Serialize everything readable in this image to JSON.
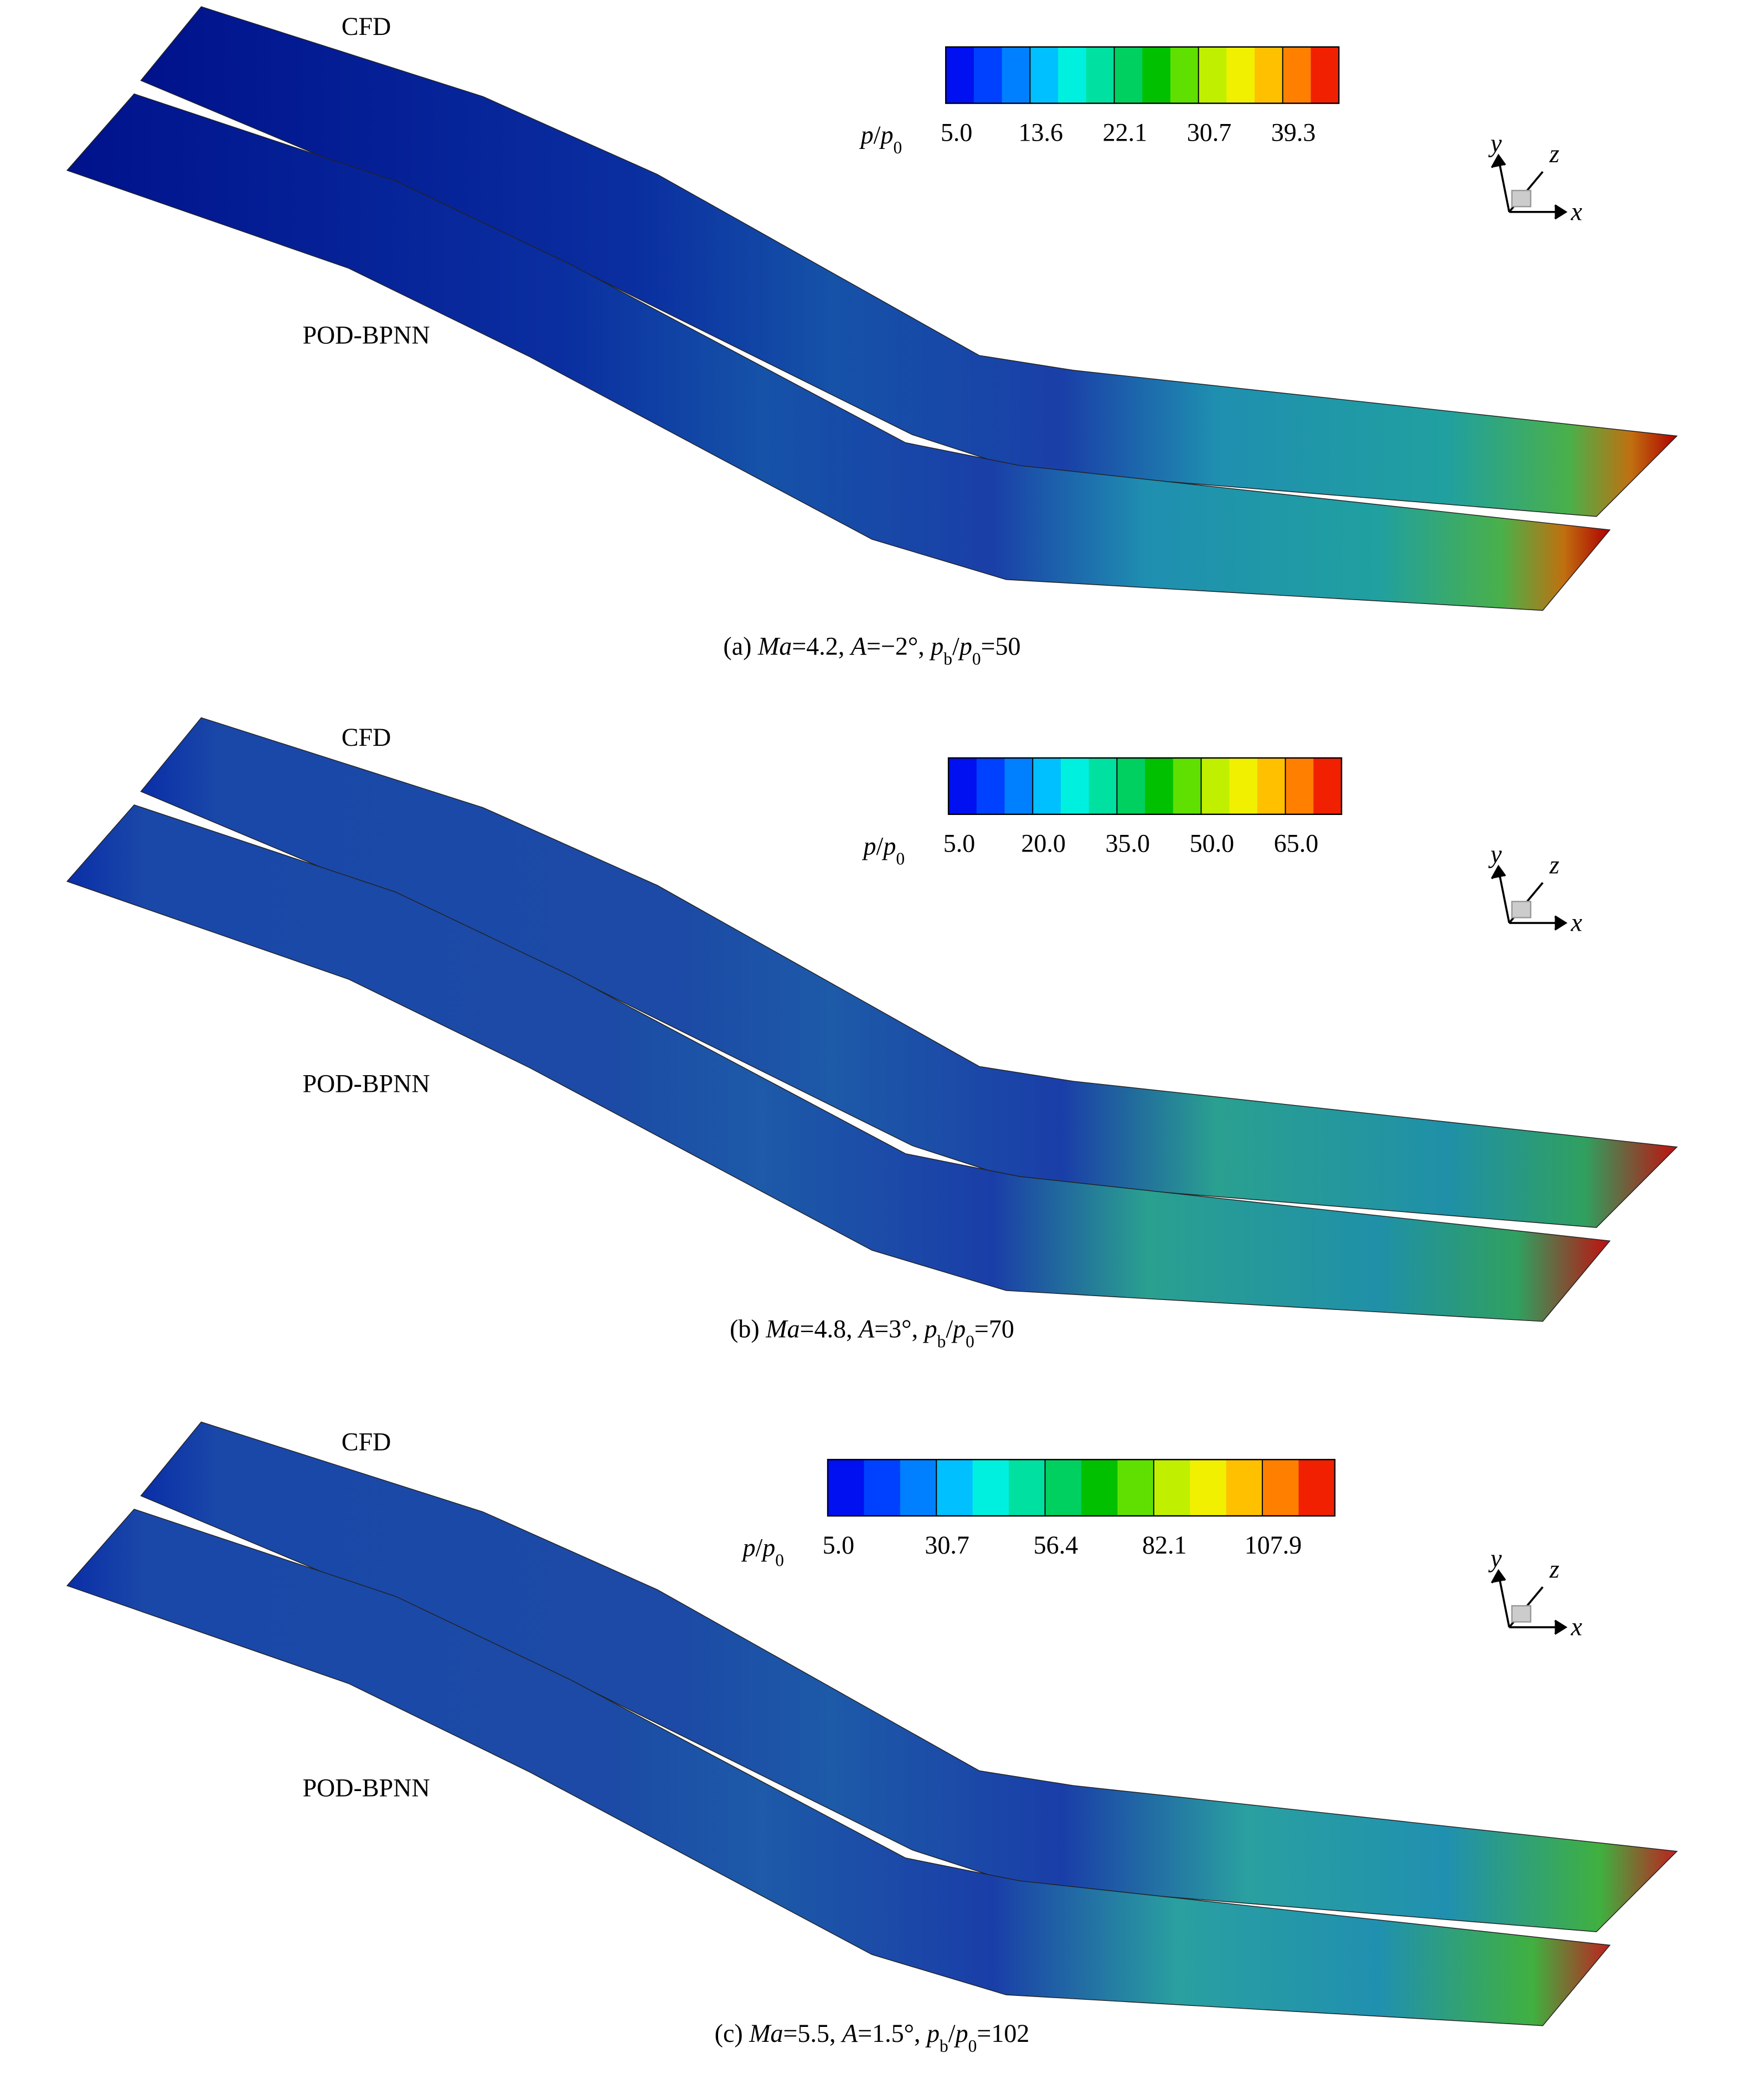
{
  "panels": [
    {
      "labels": [
        "CFD",
        "POD-BPNN"
      ],
      "colorbar": {
        "title": [
          "p",
          "/",
          "p",
          "0"
        ],
        "ticks": [
          "5.0",
          "13.6",
          "22.1",
          "30.7",
          "39.3"
        ]
      },
      "triad": [
        "y",
        "z",
        "x"
      ],
      "caption": [
        "(a) ",
        "Ma",
        "=4.2, ",
        "A",
        "=−2°, ",
        "p",
        "b",
        "/",
        "p",
        "0",
        "=50"
      ]
    },
    {
      "labels": [
        "CFD",
        "POD-BPNN"
      ],
      "colorbar": {
        "title": [
          "p",
          "/",
          "p",
          "0"
        ],
        "ticks": [
          "5.0",
          "20.0",
          "35.0",
          "50.0",
          "65.0"
        ]
      },
      "triad": [
        "y",
        "z",
        "x"
      ],
      "caption": [
        "(b) ",
        "Ma",
        "=4.8, ",
        "A",
        "=3°, ",
        "p",
        "b",
        "/",
        "p",
        "0",
        "=70"
      ]
    },
    {
      "labels": [
        "CFD",
        "POD-BPNN"
      ],
      "colorbar": {
        "title": [
          "p",
          "/",
          "p",
          "0"
        ],
        "ticks": [
          "5.0",
          "30.7",
          "56.4",
          "82.1",
          "107.9"
        ]
      },
      "triad": [
        "y",
        "z",
        "x"
      ],
      "caption": [
        "(c) ",
        "Ma",
        "=5.5, ",
        "A",
        "=1.5°, ",
        "p",
        "b",
        "/",
        "p",
        "0",
        "=102"
      ]
    }
  ]
}
